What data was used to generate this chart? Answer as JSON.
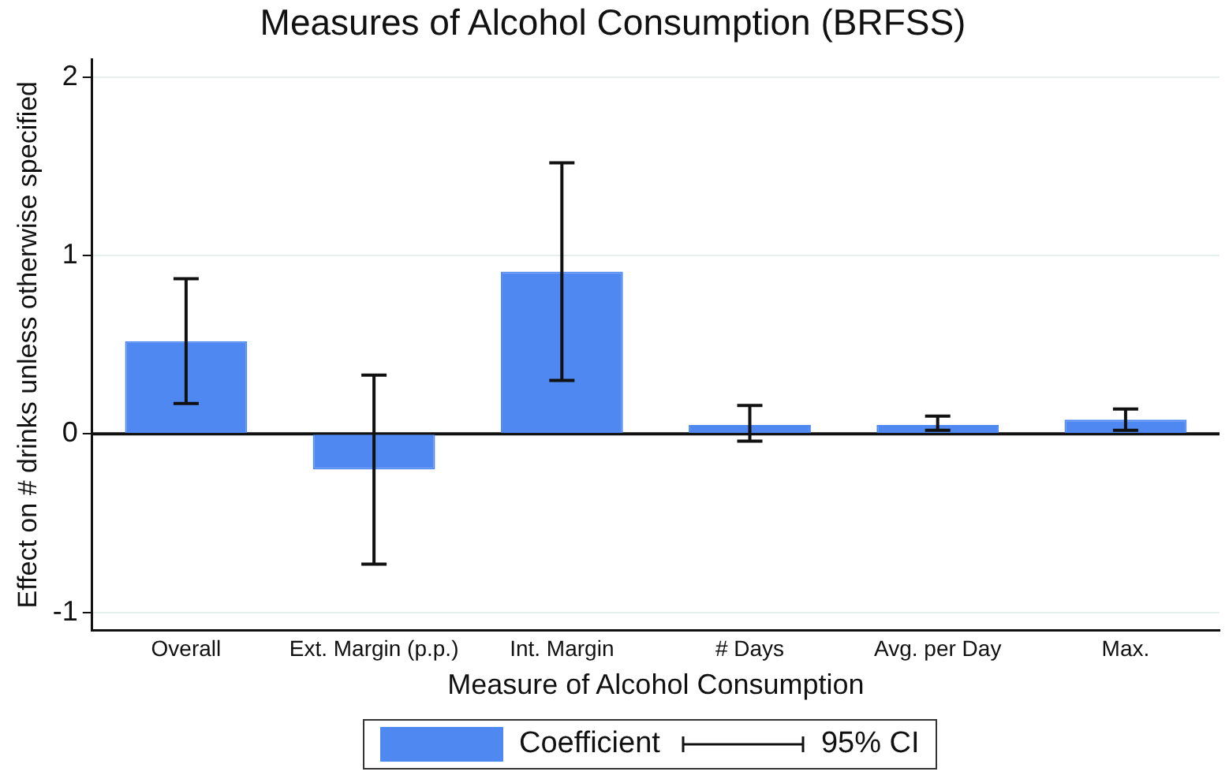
{
  "chart_data": {
    "type": "bar",
    "title": "Measures of Alcohol Consumption (BRFSS)",
    "xlabel": "Measure of Alcohol Consumption",
    "ylabel": "Effect on # drinks unless otherwise specified",
    "categories": [
      "Overall",
      "Ext. Margin (p.p.)",
      "Int. Margin",
      "# Days",
      "Avg. per Day",
      "Max."
    ],
    "series": [
      {
        "name": "Coefficient",
        "color": "#4f88f0",
        "values": [
          0.52,
          -0.2,
          0.91,
          0.05,
          0.05,
          0.08
        ],
        "errors": [
          [
            0.17,
            0.87
          ],
          [
            -0.73,
            0.33
          ],
          [
            0.3,
            1.52
          ],
          [
            -0.04,
            0.16
          ],
          [
            0.02,
            0.1
          ],
          [
            0.02,
            0.14
          ]
        ]
      }
    ],
    "annotations": [
      "95% CI"
    ],
    "ylim": [
      -1.1,
      2.1
    ],
    "yticks": [
      -1,
      0,
      1,
      2
    ],
    "grid": "y",
    "legend": "bottom"
  }
}
